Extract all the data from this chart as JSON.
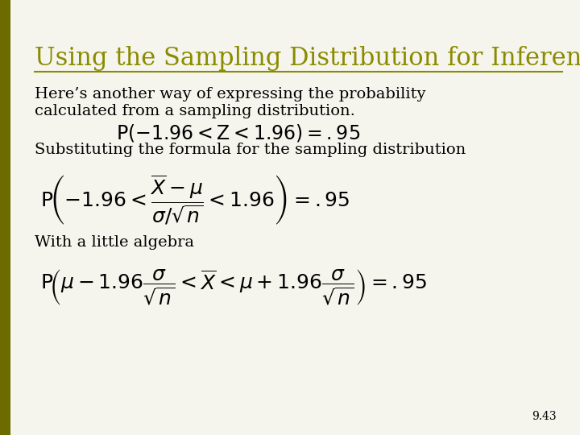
{
  "title": "Using the Sampling Distribution for Inference",
  "title_color": "#8B8B00",
  "title_fontsize": 22,
  "background_color": "#F5F5EE",
  "left_bar_color": "#6B6B00",
  "text_color": "#000000",
  "slide_number": "9.43",
  "line1": "Here’s another way of expressing the probability",
  "line2": "calculated from a sampling distribution.",
  "eq1": "P(-1.96 < Z < 1.96) = .95",
  "line3": "Substituting the formula for the sampling distribution",
  "line4": "With a little algebra",
  "font_body": 14,
  "font_eq": 15
}
